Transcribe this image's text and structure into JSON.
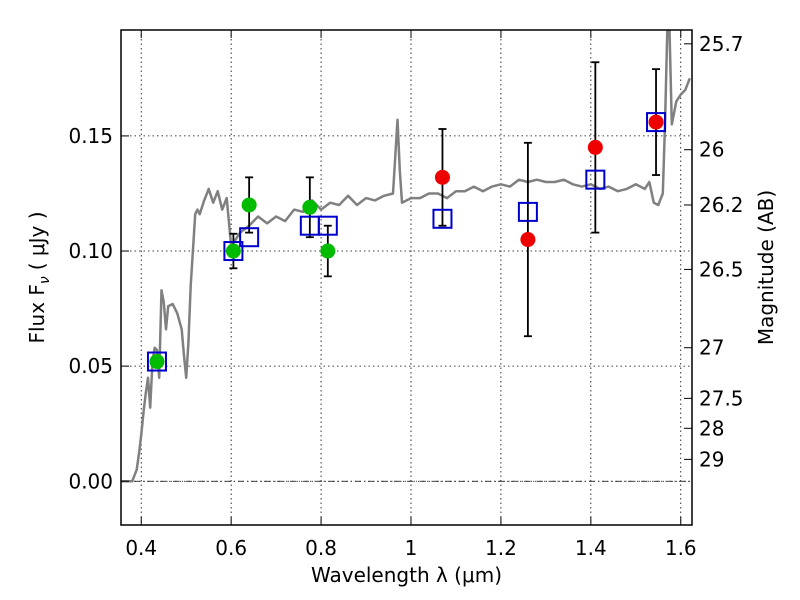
{
  "chart_data": {
    "type": "scatter",
    "xlabel": "Wavelength  λ (μm)",
    "ylabel": "Flux  F",
    "ylabel_sub": "ν",
    "ylabel_unit": "( μJy )",
    "y2label": "Magnitude (AB)",
    "xlim": [
      0.355,
      1.625
    ],
    "ylim": [
      -0.019,
      0.196
    ],
    "x_ticks": [
      0.4,
      0.6,
      0.8,
      1.0,
      1.2,
      1.4,
      1.6
    ],
    "x_tick_labels": [
      "0.4",
      "0.6",
      "0.8",
      "1",
      "1.2",
      "1.4",
      "1.6"
    ],
    "y_ticks": [
      0.0,
      0.05,
      0.1,
      0.15
    ],
    "y_tick_labels": [
      "0.00",
      "0.05",
      "0.10",
      "0.15"
    ],
    "y2_ticks": [
      {
        "label": "25.7",
        "flux": 0.19
      },
      {
        "label": "26",
        "flux": 0.144
      },
      {
        "label": "26.2",
        "flux": 0.12
      },
      {
        "label": "26.5",
        "flux": 0.092
      },
      {
        "label": "27",
        "flux": 0.058
      },
      {
        "label": "27.5",
        "flux": 0.036
      },
      {
        "label": "28",
        "flux": 0.023
      },
      {
        "label": "29",
        "flux": 0.0095
      }
    ],
    "grid": true,
    "zero_line": true,
    "colors": {
      "template": "#808080",
      "model": "#0000cc",
      "green": "#00bb00",
      "red": "#ee0000",
      "errorbar": "#000000"
    },
    "template_spectrum": {
      "x": [
        0.355,
        0.38,
        0.39,
        0.395,
        0.4,
        0.405,
        0.41,
        0.415,
        0.42,
        0.425,
        0.43,
        0.435,
        0.44,
        0.445,
        0.45,
        0.455,
        0.46,
        0.47,
        0.48,
        0.49,
        0.495,
        0.5,
        0.505,
        0.51,
        0.515,
        0.52,
        0.525,
        0.53,
        0.54,
        0.55,
        0.56,
        0.57,
        0.58,
        0.59,
        0.6,
        0.62,
        0.64,
        0.66,
        0.68,
        0.7,
        0.72,
        0.74,
        0.76,
        0.77,
        0.78,
        0.8,
        0.82,
        0.84,
        0.86,
        0.88,
        0.9,
        0.92,
        0.94,
        0.96,
        0.97,
        0.975,
        0.98,
        1.0,
        1.02,
        1.04,
        1.06,
        1.08,
        1.1,
        1.12,
        1.14,
        1.16,
        1.18,
        1.2,
        1.22,
        1.24,
        1.26,
        1.28,
        1.3,
        1.32,
        1.34,
        1.36,
        1.38,
        1.4,
        1.42,
        1.44,
        1.46,
        1.48,
        1.5,
        1.52,
        1.53,
        1.54,
        1.55,
        1.56,
        1.565,
        1.57,
        1.575,
        1.58,
        1.59,
        1.6,
        1.61,
        1.62
      ],
      "y": [
        0.0,
        0.0,
        0.005,
        0.012,
        0.02,
        0.03,
        0.038,
        0.045,
        0.032,
        0.052,
        0.058,
        0.057,
        0.045,
        0.083,
        0.078,
        0.066,
        0.076,
        0.077,
        0.073,
        0.066,
        0.055,
        0.045,
        0.06,
        0.085,
        0.1,
        0.116,
        0.118,
        0.116,
        0.122,
        0.127,
        0.121,
        0.126,
        0.118,
        0.123,
        0.102,
        0.108,
        0.111,
        0.115,
        0.112,
        0.115,
        0.113,
        0.118,
        0.117,
        0.121,
        0.122,
        0.118,
        0.121,
        0.12,
        0.124,
        0.12,
        0.123,
        0.122,
        0.124,
        0.125,
        0.157,
        0.135,
        0.121,
        0.123,
        0.123,
        0.125,
        0.125,
        0.123,
        0.126,
        0.126,
        0.128,
        0.126,
        0.128,
        0.129,
        0.128,
        0.131,
        0.13,
        0.131,
        0.13,
        0.13,
        0.131,
        0.129,
        0.128,
        0.129,
        0.127,
        0.128,
        0.126,
        0.127,
        0.129,
        0.127,
        0.13,
        0.121,
        0.12,
        0.125,
        0.155,
        0.196,
        0.196,
        0.155,
        0.165,
        0.168,
        0.17,
        0.175
      ]
    },
    "model_points": {
      "marker": "open-square",
      "x": [
        0.435,
        0.605,
        0.64,
        0.775,
        0.815,
        1.07,
        1.26,
        1.41,
        1.545
      ],
      "y": [
        0.052,
        0.1,
        0.106,
        0.111,
        0.111,
        0.114,
        0.117,
        0.131,
        0.156
      ]
    },
    "green_points": {
      "marker": "filled-circle",
      "x": [
        0.435,
        0.605,
        0.64,
        0.775,
        0.815
      ],
      "y": [
        0.052,
        0.1,
        0.12,
        0.119,
        0.1
      ],
      "yerr": [
        0.0,
        0.0075,
        0.012,
        0.013,
        0.011
      ]
    },
    "red_points": {
      "marker": "filled-circle",
      "x": [
        1.07,
        1.26,
        1.41,
        1.545
      ],
      "y": [
        0.132,
        0.105,
        0.145,
        0.156
      ],
      "yerr": [
        0.021,
        0.042,
        0.037,
        0.023
      ]
    }
  }
}
